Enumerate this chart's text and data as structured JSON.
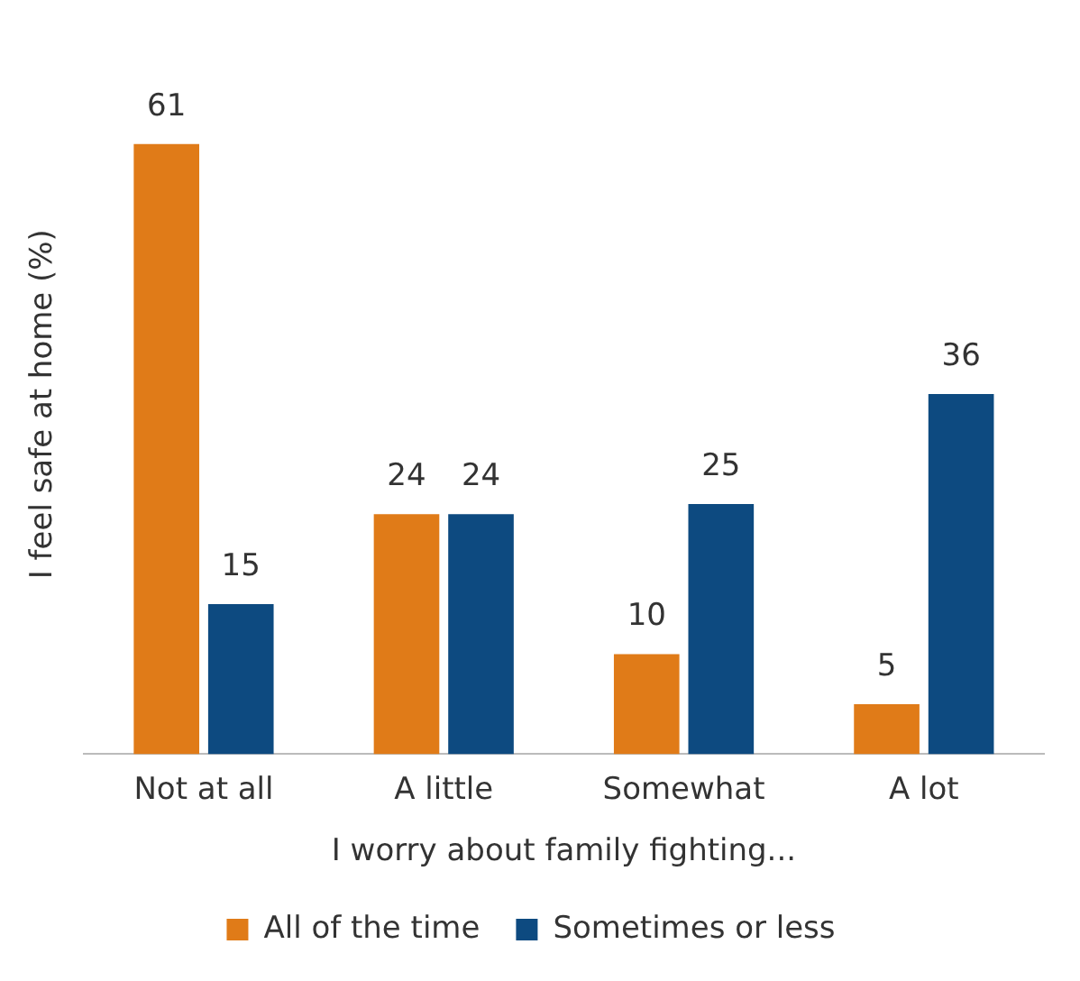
{
  "chart_data": {
    "type": "bar",
    "xlabel": "I worry about family fighting...",
    "ylabel": "I feel safe at home (%)",
    "categories": [
      "Not at all",
      "A little",
      "Somewhat",
      "A lot"
    ],
    "series": [
      {
        "name": "All of the time",
        "color": "#e07b18",
        "values": [
          61,
          24,
          10,
          5
        ]
      },
      {
        "name": "Sometimes or less",
        "color": "#0d4a80",
        "values": [
          15,
          24,
          25,
          36
        ]
      }
    ],
    "data_labels": true,
    "grid": false,
    "legend": "bottom",
    "tick_labels": "x"
  }
}
